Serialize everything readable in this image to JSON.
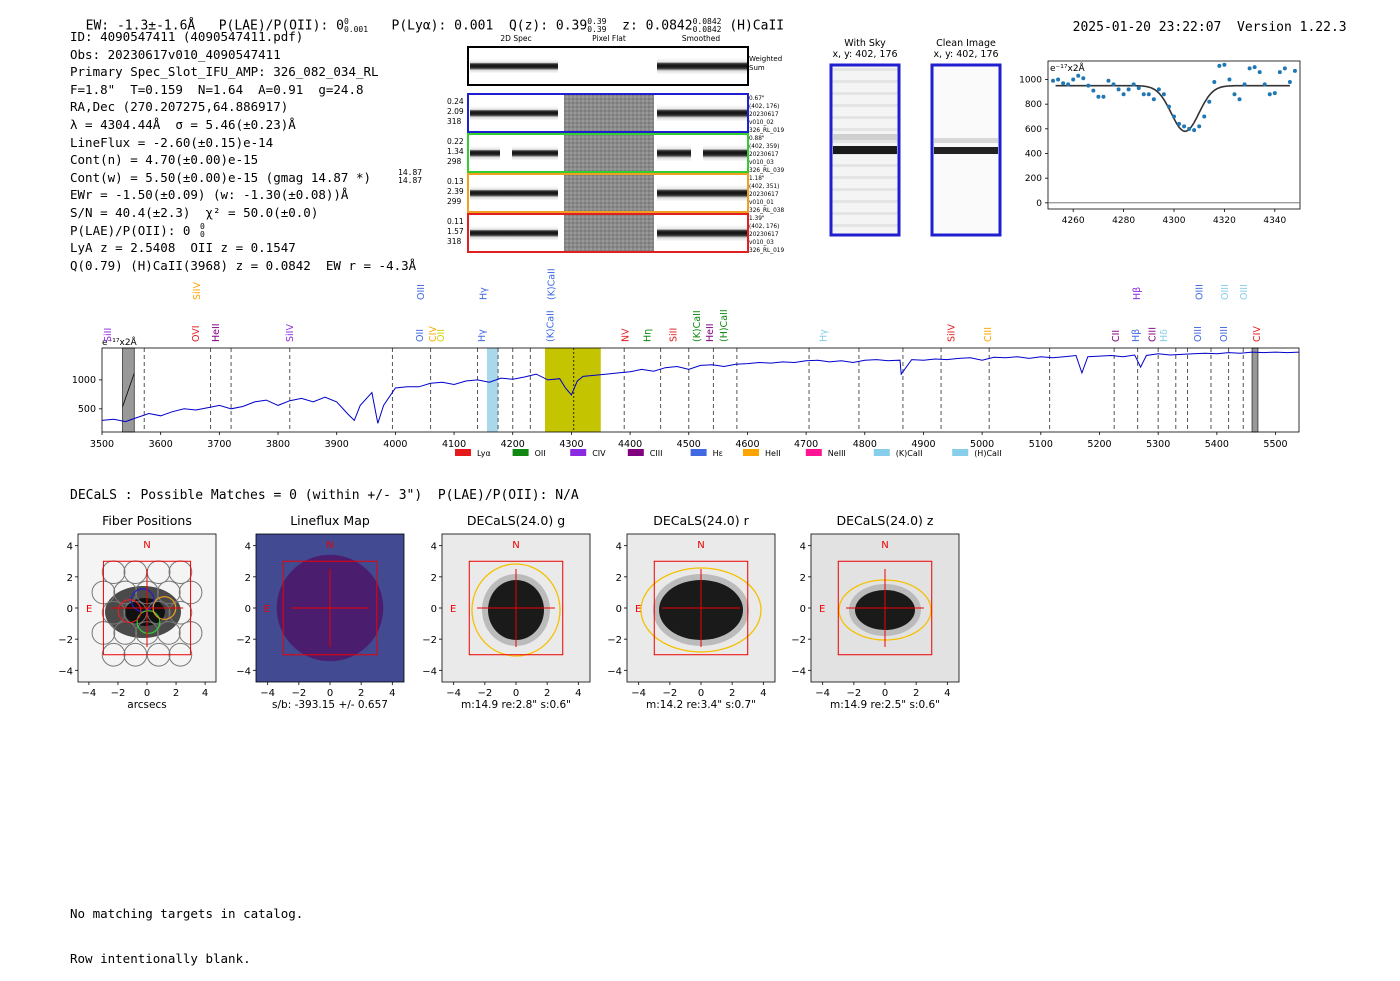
{
  "header": {
    "ew": "EW: -1.3±-1.6Å",
    "plae_label": "P(LAE)/P(OII): 0",
    "plae_sup": "0",
    "plae_sub": "0.001",
    "plya": "P(Lyα): 0.001",
    "qz_label": "Q(z): 0.39",
    "qz_sup": "0.39",
    "qz_sub": "0.39",
    "z_label": "z: 0.0842",
    "z_sup": "0.0842",
    "z_sub": "0.0842",
    "z_line": "(H)CaII",
    "timestamp": "2025-01-20 23:22:07",
    "version": "Version 1.22.3"
  },
  "info": {
    "lines": [
      "ID: 4090547411 (4090547411.pdf)",
      "Obs: 20230617v010_4090547411",
      "Primary Spec_Slot_IFU_AMP: 326_082_034_RL",
      "F=1.8\"  T=0.159  N=1.64  A=0.91  g=24.8",
      "RA,Dec (270.207275,64.886917)",
      "λ = 4304.44Å  σ = 5.46(±0.23)Å",
      "LineFlux = -2.60(±0.15)e-14",
      "Cont(n) = 4.70(±0.00)e-15",
      "Cont(w) = 5.50(±0.00)e-15 (gmag 14.87 *)",
      "EWr = -1.50(±0.09) (w: -1.30(±0.08))Å",
      "S/N = 40.4(±2.3)  χ² = 50.0(±0.0)",
      "P(LAE)/P(OII): 0",
      "LyA z = 2.5408  OII z = 0.1547",
      "Q(0.79) (H)CaII(3968) z = 0.0842  EW r = -4.3Å"
    ],
    "gmag_sup": "14.87",
    "gmag_sub": "14.87",
    "plae_sup": "0",
    "plae_sub": "0"
  },
  "spec2d": {
    "columns": [
      "2D Spec",
      "Pixel Flat",
      "Smoothed"
    ],
    "weighted_label_1": "Weighted",
    "weighted_label_2": "Sum",
    "rows": [
      {
        "left": [
          "0.24",
          "2.09",
          "318"
        ],
        "right": [
          "0.67\"",
          "(402, 176)",
          "20230617",
          "v010_02",
          "326_RL_019"
        ],
        "color": "#1f1fd0"
      },
      {
        "left": [
          "0.22",
          "1.34",
          "298"
        ],
        "right": [
          "0.88\"",
          "(402, 359)",
          "20230617",
          "v010_03",
          "326_RL_039"
        ],
        "color": "#33cc33"
      },
      {
        "left": [
          "0.13",
          "2.39",
          "299"
        ],
        "right": [
          "1.18\"",
          "(402, 351)",
          "20230617",
          "v010_01",
          "326_RL_038"
        ],
        "color": "#f0a020"
      },
      {
        "left": [
          "0.11",
          "1.57",
          "318"
        ],
        "right": [
          "1.39\"",
          "(402, 176)",
          "20230617",
          "v010_03",
          "326_RL_019"
        ],
        "color": "#e02020"
      }
    ]
  },
  "sky": {
    "with_sky_title": "With Sky",
    "with_sky_coords": "x, y: 402, 176",
    "clean_title": "Clean Image",
    "clean_coords": "x, y: 402, 176"
  },
  "zoom_chart": {
    "unit_label": "e⁻¹⁷x2Å",
    "x_ticks": [
      4260,
      4280,
      4300,
      4320,
      4340
    ],
    "y_ticks": [
      0,
      200,
      400,
      600,
      800,
      1000
    ]
  },
  "main_spectrum": {
    "unit_label": "e⁻¹⁷x2Å",
    "y_ticks": [
      500,
      1000
    ],
    "x_ticks": [
      3500,
      3600,
      3700,
      3800,
      3900,
      4000,
      4100,
      4200,
      4300,
      4400,
      4500,
      4600,
      4700,
      4800,
      4900,
      5000,
      5100,
      5200,
      5300,
      5400,
      5500
    ],
    "legend": [
      {
        "name": "Lyα",
        "color": "#e41a1c"
      },
      {
        "name": "OII",
        "color": "#118811"
      },
      {
        "name": "CIV",
        "color": "#8a2be2"
      },
      {
        "name": "CIII",
        "color": "#800080"
      },
      {
        "name": "Hε",
        "color": "#4169e1"
      },
      {
        "name": "HeII",
        "color": "#ffa500"
      },
      {
        "name": "NeIII",
        "color": "#ff1493"
      },
      {
        "name": "(K)CaII",
        "color": "#87ceeb"
      },
      {
        "name": "(H)CaII",
        "color": "#87ceeb"
      }
    ],
    "line_labels": [
      {
        "name": "SiII",
        "color": "#8a2be2",
        "wl": 3510
      },
      {
        "name": "OVI",
        "color": "#e41a1c",
        "wl": 3660
      },
      {
        "name": "SiIV",
        "color": "#ffa500",
        "wl": 3662,
        "upper": true
      },
      {
        "name": "HeII",
        "color": "#800080",
        "wl": 3694
      },
      {
        "name": "SiIV",
        "color": "#8a2be2",
        "wl": 3820
      },
      {
        "name": "OII",
        "color": "#4169e1",
        "wl": 4042
      },
      {
        "name": "OIII",
        "color": "#4169e1",
        "wl": 4044,
        "upper": true
      },
      {
        "name": "CIV",
        "color": "#ffa500",
        "wl": 4064
      },
      {
        "name": "OII",
        "color": "#d4d400",
        "wl": 4078
      },
      {
        "name": "Hγ",
        "color": "#4169e1",
        "wl": 4148
      },
      {
        "name": "Hγ",
        "color": "#4169e1",
        "wl": 4150,
        "upper": true
      },
      {
        "name": "(K)CaII",
        "color": "#4169e1",
        "wl": 4264
      },
      {
        "name": "(K)CaII",
        "color": "#4169e1",
        "wl": 4266,
        "upper": true
      },
      {
        "name": "NV",
        "color": "#e41a1c",
        "wl": 4392
      },
      {
        "name": "Hη",
        "color": "#118811",
        "wl": 4430
      },
      {
        "name": "SiII",
        "color": "#e41a1c",
        "wl": 4474
      },
      {
        "name": "(K)CaII",
        "color": "#118811",
        "wl": 4514
      },
      {
        "name": "HeII",
        "color": "#800080",
        "wl": 4536
      },
      {
        "name": "(H)CaII",
        "color": "#118811",
        "wl": 4560
      },
      {
        "name": "Hγ",
        "color": "#87ceeb",
        "wl": 4730
      },
      {
        "name": "SiIV",
        "color": "#e41a1c",
        "wl": 4948
      },
      {
        "name": "CIII",
        "color": "#ffa500",
        "wl": 5010
      },
      {
        "name": "CII",
        "color": "#800080",
        "wl": 5228
      },
      {
        "name": "Hβ",
        "color": "#4169e1",
        "wl": 5262
      },
      {
        "name": "Hβ",
        "color": "#8a2be2",
        "wl": 5264,
        "upper": true
      },
      {
        "name": "CIII",
        "color": "#800080",
        "wl": 5290
      },
      {
        "name": "Hδ",
        "color": "#87ceeb",
        "wl": 5310
      },
      {
        "name": "OIII",
        "color": "#4169e1",
        "wl": 5368
      },
      {
        "name": "OIII",
        "color": "#4169e1",
        "wl": 5370,
        "upper": true
      },
      {
        "name": "OIII",
        "color": "#4169e1",
        "wl": 5412
      },
      {
        "name": "OIII",
        "color": "#87ceeb",
        "wl": 5414,
        "upper": true
      },
      {
        "name": "OIII",
        "color": "#87ceeb",
        "wl": 5446,
        "upper": true
      },
      {
        "name": "CIV",
        "color": "#e41a1c",
        "wl": 5468
      }
    ]
  },
  "decals": {
    "summary": "DECaLS : Possible Matches = 0 (within +/- 3\")  P(LAE)/P(OII): N/A",
    "panels": [
      {
        "title": "Fiber Positions",
        "xlabel": "arcsecs"
      },
      {
        "title": "Lineflux Map",
        "xlabel": "s/b: -393.15 +/- 0.657"
      },
      {
        "title": "DECaLS(24.0) g",
        "xlabel": "m:14.9  re:2.8\"  s:0.6\""
      },
      {
        "title": "DECaLS(24.0) r",
        "xlabel": "m:14.2  re:3.4\"  s:0.7\""
      },
      {
        "title": "DECaLS(24.0) z",
        "xlabel": "m:14.9  re:2.5\"  s:0.6\""
      }
    ],
    "north": "N",
    "east": "E",
    "ticks": [
      "4",
      "2",
      "0",
      "−2",
      "−4"
    ],
    "xticks": [
      "−4",
      "−2",
      "0",
      "2",
      "4"
    ]
  },
  "footer": {
    "line1": "No matching targets in catalog.",
    "line2": "Row intentionally blank."
  },
  "chart_data": [
    {
      "type": "scatter",
      "title": "",
      "xlabel": "",
      "ylabel": "e-17x2Å",
      "xlim": [
        4250,
        4350
      ],
      "ylim": [
        -50,
        1150
      ],
      "points_x": [
        4252,
        4254,
        4256,
        4258,
        4260,
        4262,
        4264,
        4266,
        4268,
        4270,
        4272,
        4274,
        4276,
        4278,
        4280,
        4282,
        4284,
        4286,
        4288,
        4290,
        4292,
        4294,
        4296,
        4298,
        4300,
        4302,
        4304,
        4306,
        4308,
        4310,
        4312,
        4314,
        4316,
        4318,
        4320,
        4322,
        4324,
        4326,
        4328,
        4330,
        4332,
        4334,
        4336,
        4338,
        4340,
        4342,
        4344,
        4346,
        4348
      ],
      "points_y": [
        990,
        1000,
        970,
        960,
        1000,
        1030,
        1010,
        950,
        910,
        860,
        860,
        990,
        960,
        920,
        880,
        920,
        960,
        930,
        880,
        880,
        840,
        920,
        880,
        780,
        700,
        640,
        620,
        600,
        590,
        620,
        700,
        820,
        980,
        1110,
        1120,
        1000,
        880,
        840,
        960,
        1090,
        1100,
        1060,
        960,
        880,
        890,
        1060,
        1090,
        980,
        1070
      ],
      "fit_x_range": [
        4250,
        4350
      ],
      "fit_baseline": 950,
      "fit_center": 4304.4,
      "fit_sigma": 5.46,
      "fit_depth": 370
    },
    {
      "type": "line",
      "title": "",
      "xlabel": "",
      "ylabel": "e-17x2Å",
      "xlim": [
        3500,
        5540
      ],
      "ylim": [
        100,
        1550
      ],
      "x": [
        3500,
        3520,
        3540,
        3560,
        3580,
        3600,
        3620,
        3640,
        3660,
        3680,
        3700,
        3720,
        3740,
        3760,
        3780,
        3800,
        3820,
        3840,
        3860,
        3880,
        3900,
        3920,
        3930,
        3940,
        3960,
        3970,
        3980,
        4000,
        4020,
        4040,
        4060,
        4080,
        4100,
        4120,
        4140,
        4160,
        4180,
        4200,
        4220,
        4240,
        4260,
        4280,
        4290,
        4300,
        4310,
        4320,
        4340,
        4360,
        4380,
        4400,
        4420,
        4440,
        4460,
        4480,
        4500,
        4520,
        4540,
        4560,
        4580,
        4600,
        4620,
        4640,
        4660,
        4680,
        4700,
        4720,
        4740,
        4760,
        4780,
        4800,
        4820,
        4840,
        4860,
        4862,
        4880,
        4900,
        4920,
        4940,
        4960,
        4980,
        5000,
        5020,
        5040,
        5060,
        5080,
        5100,
        5120,
        5140,
        5160,
        5170,
        5180,
        5200,
        5220,
        5240,
        5260,
        5270,
        5280,
        5300,
        5320,
        5340,
        5360,
        5380,
        5400,
        5420,
        5440,
        5460,
        5480,
        5500,
        5520,
        5540
      ],
      "y": [
        300,
        320,
        280,
        350,
        420,
        380,
        450,
        500,
        480,
        520,
        560,
        500,
        540,
        620,
        650,
        560,
        640,
        680,
        620,
        700,
        620,
        400,
        300,
        560,
        780,
        250,
        560,
        860,
        880,
        880,
        940,
        960,
        920,
        980,
        1000,
        960,
        1030,
        1010,
        1050,
        1100,
        1000,
        1020,
        860,
        740,
        980,
        1060,
        1080,
        1100,
        1120,
        1140,
        1180,
        1150,
        1210,
        1230,
        1180,
        1250,
        1260,
        1230,
        1270,
        1280,
        1300,
        1290,
        1310,
        1300,
        1330,
        1340,
        1310,
        1330,
        1300,
        1340,
        1350,
        1330,
        1340,
        1100,
        1350,
        1340,
        1360,
        1350,
        1370,
        1380,
        1340,
        1390,
        1380,
        1400,
        1370,
        1400,
        1380,
        1400,
        1420,
        1120,
        1400,
        1410,
        1420,
        1400,
        1430,
        1220,
        1420,
        1450,
        1430,
        1440,
        1450,
        1460,
        1450,
        1470,
        1460,
        1480,
        1470,
        1480,
        1470,
        1480
      ],
      "markers": [
        3572,
        3685,
        3720,
        3820,
        3995,
        4060,
        4140,
        4175,
        4200,
        4230,
        4390,
        4452,
        4500,
        4542,
        4582,
        4705,
        4790,
        4865,
        4930,
        5012,
        5115,
        5225,
        5265,
        5300,
        5330,
        5350,
        5390,
        5420,
        5445
      ],
      "highlight_band": [
        4255,
        4350
      ],
      "highlight_center": 4304,
      "sky_band": [
        4156,
        4175
      ],
      "masked_bands": [
        [
          3535,
          3555
        ],
        [
          5460,
          5470
        ]
      ]
    }
  ]
}
